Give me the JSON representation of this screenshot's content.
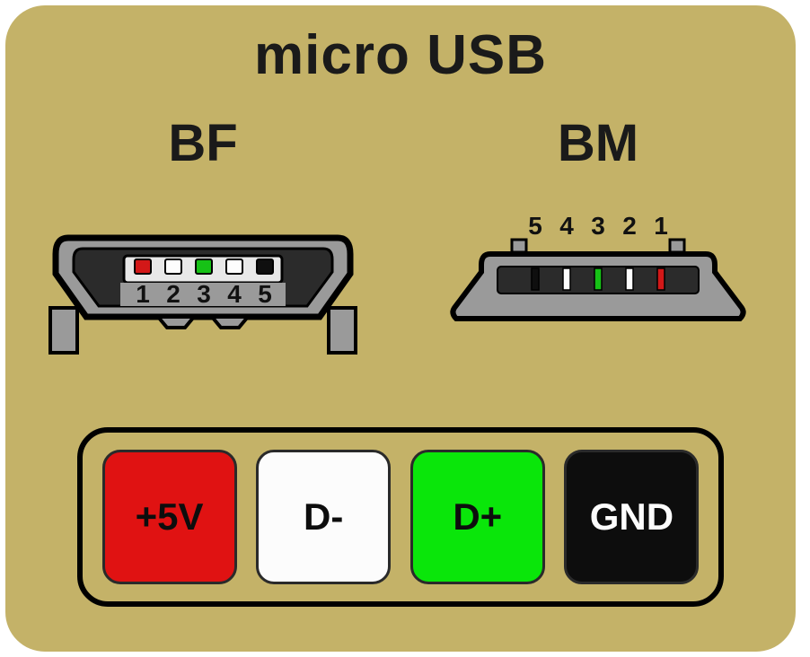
{
  "title": "micro USB",
  "title_fontsize": 62,
  "title_color": "#1a1a1a",
  "panel": {
    "bg": "#c4b268",
    "radius": 44
  },
  "connectors": {
    "label_fontsize": 58,
    "label_color": "#1a1a1a",
    "bf": {
      "label": "BF",
      "pin_order": [
        "1",
        "2",
        "3",
        "4",
        "5"
      ],
      "pin_colors": [
        "#d31818",
        "#fdfdfd",
        "#16c216",
        "#fdfdfd",
        "#0f0f0f"
      ],
      "shell_stroke": "#000000",
      "shell_fill_outer": "#9a9a9a",
      "shell_fill_inner": "#9a9a9a",
      "slot_fill": "#2b2b2b",
      "tongue_fill": "#e8e8e8",
      "num_fontsize": 28,
      "num_color": "#111111"
    },
    "bm": {
      "label": "BM",
      "pin_order": [
        "5",
        "4",
        "3",
        "2",
        "1"
      ],
      "pin_colors": [
        "#0f0f0f",
        "#fdfdfd",
        "#16c216",
        "#fdfdfd",
        "#d31818"
      ],
      "shell_stroke": "#000000",
      "shell_fill": "#9a9a9a",
      "slot_fill": "#2b2b2b",
      "tongue_fill": "#e8e8e8",
      "num_fontsize": 28,
      "num_color": "#111111"
    }
  },
  "legend": {
    "box_border_color": "#000000",
    "box_bg": "#c4b268",
    "item_border_color": "#2a2a2a",
    "item_fontsize": 42,
    "items": [
      {
        "label": "+5V",
        "bg": "#e01212",
        "fg": "#0d0d0d"
      },
      {
        "label": "D-",
        "bg": "#fcfcfc",
        "fg": "#0d0d0d"
      },
      {
        "label": "D+",
        "bg": "#0ae60a",
        "fg": "#0d0d0d"
      },
      {
        "label": "GND",
        "bg": "#0d0d0d",
        "fg": "#fcfcfc"
      }
    ]
  }
}
